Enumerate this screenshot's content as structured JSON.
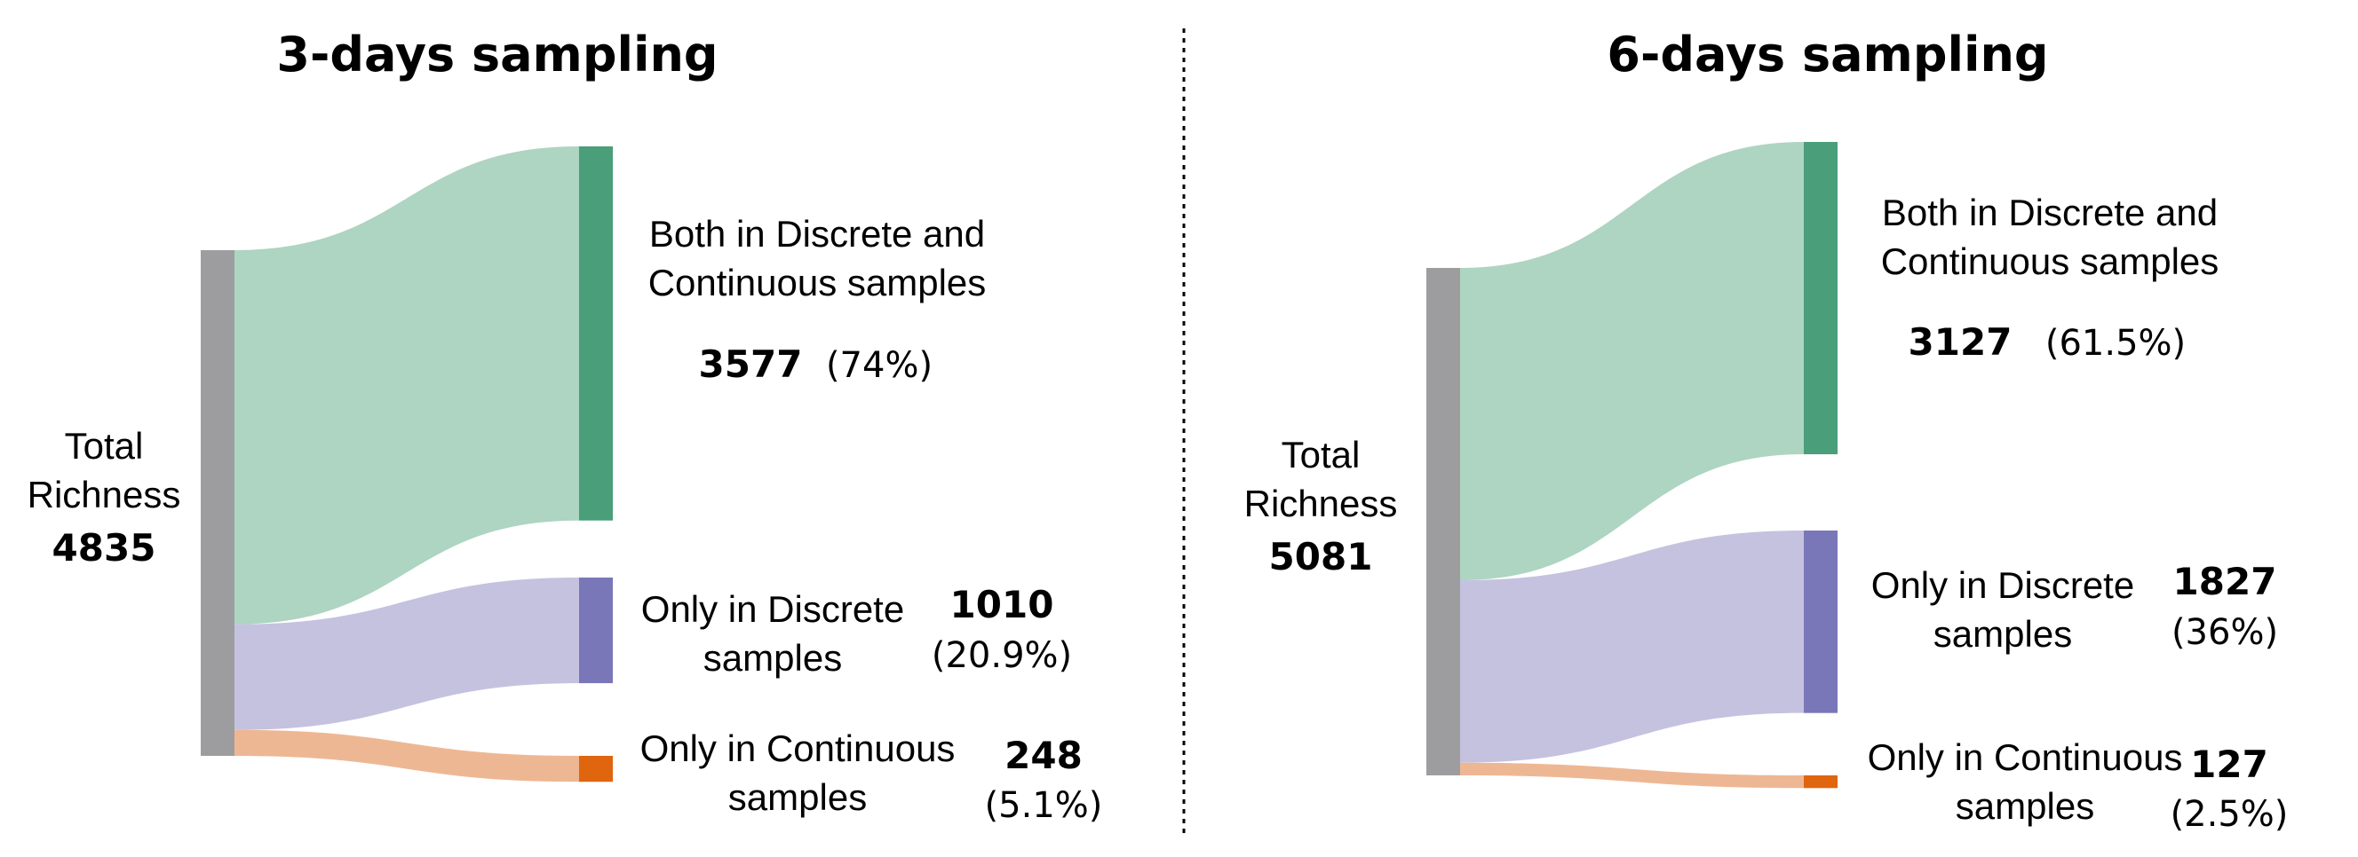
{
  "chart_data": [
    {
      "type": "sankey",
      "title": "3-days sampling",
      "source": {
        "label_line1": "Total",
        "label_line2": "Richness",
        "value": 4835
      },
      "flows": [
        {
          "label_line1": "Both in Discrete and",
          "label_line2": "Continuous samples",
          "value": 3577,
          "pct_text": "(74%)",
          "color": "#4A9E7A",
          "flow_color": "#AED4C2"
        },
        {
          "label_line1": "Only in Discrete",
          "label_line2": "samples",
          "value": 1010,
          "pct_text": "(20.9%)",
          "color": "#7A77B8",
          "flow_color": "#C5C2E0"
        },
        {
          "label_line1": "Only in Continuous",
          "label_line2": "samples",
          "value": 248,
          "pct_text": "(5.1%)",
          "color": "#E0650F",
          "flow_color": "#EEB794"
        }
      ]
    },
    {
      "type": "sankey",
      "title": "6-days sampling",
      "source": {
        "label_line1": "Total",
        "label_line2": "Richness",
        "value": 5081
      },
      "flows": [
        {
          "label_line1": "Both in Discrete and",
          "label_line2": "Continuous samples",
          "value": 3127,
          "pct_text": "(61.5%)",
          "color": "#4A9E7A",
          "flow_color": "#AED4C2"
        },
        {
          "label_line1": "Only in Discrete",
          "label_line2": "samples",
          "value": 1827,
          "pct_text": "(36%)",
          "color": "#7A77B8",
          "flow_color": "#C5C2E0"
        },
        {
          "label_line1": "Only in Continuous",
          "label_line2": "samples",
          "value": 127,
          "pct_text": "(2.5%)",
          "color": "#E0650F",
          "flow_color": "#EEB794"
        }
      ]
    }
  ],
  "colors": {
    "source_bar": "#9D9D9F",
    "divider": "#000000"
  }
}
